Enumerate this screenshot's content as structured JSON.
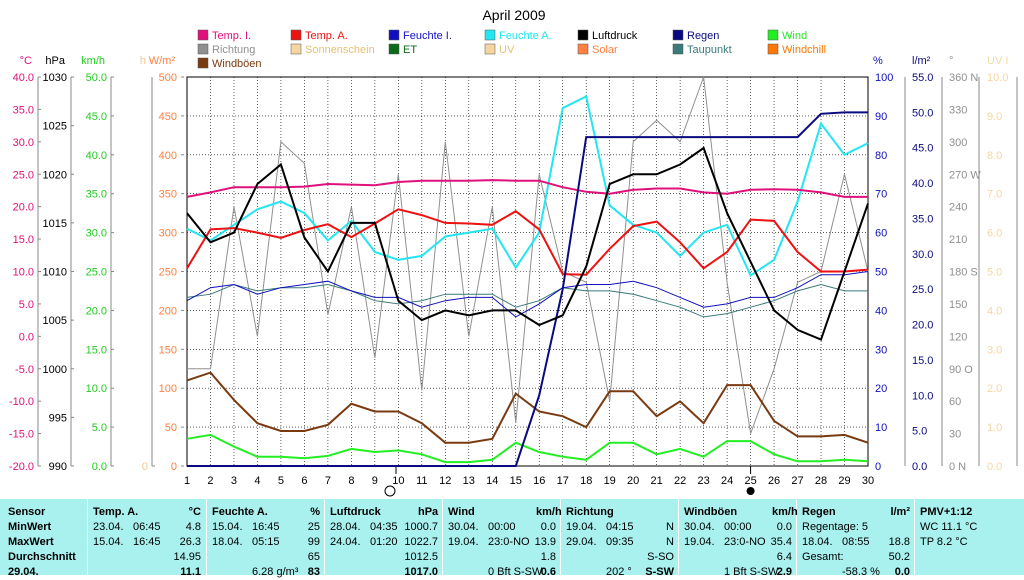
{
  "chart_data": {
    "type": "line",
    "title": "April 2009",
    "x": [
      1,
      2,
      3,
      4,
      5,
      6,
      7,
      8,
      9,
      10,
      11,
      12,
      13,
      14,
      15,
      16,
      17,
      18,
      19,
      20,
      21,
      22,
      23,
      24,
      25,
      26,
      27,
      28,
      29,
      30
    ],
    "x_ticks": [
      "1",
      "2",
      "3",
      "4",
      "5",
      "6",
      "7",
      "8",
      "9",
      "10",
      "11",
      "12",
      "13",
      "14",
      "15",
      "16",
      "17",
      "18",
      "19",
      "20",
      "21",
      "22",
      "23",
      "24",
      "25",
      "26",
      "27",
      "28",
      "29",
      "30"
    ],
    "legend": [
      {
        "name": "Temp. I.",
        "color": "#e0107c"
      },
      {
        "name": "Temp. A.",
        "color": "#ee1111"
      },
      {
        "name": "Feuchte I.",
        "color": "#1010c0"
      },
      {
        "name": "Feuchte A.",
        "color": "#22e6f0"
      },
      {
        "name": "Luftdruck",
        "color": "#000000"
      },
      {
        "name": "Regen",
        "color": "#0a0a80"
      },
      {
        "name": "Wind",
        "color": "#22ee22"
      },
      {
        "name": "Richtung",
        "color": "#909090"
      },
      {
        "name": "Sonnenschein",
        "color": "#f5d6a0"
      },
      {
        "name": "ET",
        "color": "#0a6a1a"
      },
      {
        "name": "UV",
        "color": "#f5d6a0"
      },
      {
        "name": "Solar",
        "color": "#ff8040"
      },
      {
        "name": "Taupunkt",
        "color": "#3a7a7a"
      },
      {
        "name": "Windchill",
        "color": "#ff7700"
      },
      {
        "name": "Windböen",
        "color": "#7a3a10"
      }
    ],
    "axes_left": [
      {
        "unit": "°C",
        "color": "#e0107c",
        "ticks": [
          "40.0",
          "35.0",
          "30.0",
          "25.0",
          "20.0",
          "15.0",
          "10.0",
          "5.0",
          "0.0",
          "-5.0",
          "-10.0",
          "-15.0",
          "-20.0"
        ]
      },
      {
        "unit": "hPa",
        "color": "#000000",
        "ticks": [
          "1030",
          "1025",
          "1020",
          "1015",
          "1010",
          "1005",
          "1000",
          "995",
          "990"
        ]
      },
      {
        "unit": "km/h",
        "color": "#22cc22",
        "ticks": [
          "50.0",
          "45.0",
          "40.0",
          "35.0",
          "30.0",
          "25.0",
          "20.0",
          "15.0",
          "10.0",
          "5.0",
          "0.0"
        ]
      },
      {
        "unit": "h",
        "color": "#f5c890",
        "ticks": [
          "0"
        ]
      },
      {
        "unit": "W/m²",
        "color": "#ff8040",
        "ticks": [
          "500",
          "450",
          "400",
          "350",
          "300",
          "250",
          "200",
          "150",
          "100",
          "50",
          "0"
        ]
      }
    ],
    "axes_right": [
      {
        "unit": "%",
        "color": "#1010c0",
        "ticks": [
          "100",
          "90",
          "80",
          "70",
          "60",
          "50",
          "40",
          "30",
          "20",
          "10",
          "0"
        ]
      },
      {
        "unit": "l/m²",
        "color": "#0a0a80",
        "ticks": [
          "55.0",
          "50.0",
          "45.0",
          "40.0",
          "35.0",
          "30.0",
          "25.0",
          "20.0",
          "15.0",
          "10.0",
          "5.0",
          "0.0"
        ]
      },
      {
        "unit": "°",
        "color": "#909090",
        "ticks": [
          "360 N",
          "330",
          "300",
          "270 W",
          "240",
          "210",
          "180 S",
          "150",
          "120",
          "90 O",
          "60",
          "30",
          "0 N"
        ]
      },
      {
        "unit": "UV I",
        "color": "#f5d6a0",
        "ticks": [
          "10.0",
          "9.0",
          "8.0",
          "7.0",
          "6.0",
          "5.0",
          "4.0",
          "3.0",
          "2.0",
          "1.0",
          "0.0"
        ]
      }
    ],
    "series": [
      {
        "name": "Temp. I.",
        "axis": "temp",
        "color": "#e0107c",
        "values": [
          21.5,
          22.2,
          23.0,
          23.0,
          23.0,
          23.1,
          23.5,
          23.4,
          23.3,
          23.8,
          24.0,
          24.0,
          24.0,
          24.1,
          24.0,
          24.0,
          23.0,
          22.3,
          22.0,
          22.6,
          22.8,
          22.8,
          22.2,
          22.0,
          22.6,
          22.7,
          22.6,
          22.2,
          21.5,
          21.5
        ]
      },
      {
        "name": "Temp. A.",
        "axis": "temp",
        "color": "#ee1111",
        "values": [
          10.5,
          16.5,
          16.7,
          16.0,
          15.2,
          16.4,
          17.3,
          15.3,
          17.4,
          19.6,
          18.7,
          17.5,
          17.4,
          17.2,
          19.3,
          16.5,
          9.6,
          9.5,
          13.5,
          17.0,
          17.7,
          14.5,
          10.5,
          13.0,
          18.0,
          17.8,
          13.0,
          10.0,
          10.0,
          10.3
        ]
      },
      {
        "name": "Feuchte A.",
        "axis": "pct",
        "color": "#22e6f0",
        "values": [
          61,
          58,
          62,
          66,
          68,
          65,
          58,
          63,
          55,
          53,
          54,
          59,
          60,
          61,
          51,
          60,
          92,
          95,
          67,
          62,
          60,
          54,
          60,
          62,
          49,
          53,
          68,
          88,
          80,
          83
        ]
      },
      {
        "name": "Luftdruck",
        "axis": "hpa",
        "color": "#000000",
        "values": [
          1016.0,
          1013.0,
          1014.0,
          1019.0,
          1021.0,
          1013.5,
          1010.0,
          1015.0,
          1015.0,
          1007.0,
          1005.0,
          1006.0,
          1005.5,
          1006.0,
          1006.0,
          1004.5,
          1005.5,
          1010.5,
          1019.0,
          1020.0,
          1020.0,
          1021.0,
          1022.7,
          1016.0,
          1011.0,
          1006.0,
          1004.0,
          1003.0,
          1010.0,
          1017.0
        ]
      },
      {
        "name": "Regen",
        "axis": "rain",
        "color": "#0a0a80",
        "values": [
          0,
          0,
          0,
          0,
          0,
          0,
          0,
          0,
          0,
          0,
          0,
          0,
          0,
          0,
          0,
          10.0,
          25.0,
          46.5,
          46.5,
          46.5,
          46.5,
          46.5,
          46.5,
          46.5,
          46.5,
          46.5,
          46.5,
          49.8,
          50.0,
          50.0
        ]
      },
      {
        "name": "Wind",
        "axis": "kmh",
        "color": "#22ee22",
        "values": [
          3.5,
          4.0,
          2.5,
          1.2,
          1.2,
          1.0,
          1.3,
          2.2,
          1.8,
          2.0,
          1.5,
          0.5,
          0.5,
          0.8,
          3.0,
          1.8,
          1.2,
          0.8,
          3.0,
          3.0,
          1.5,
          2.2,
          1.2,
          3.2,
          3.2,
          1.5,
          0.6,
          0.6,
          0.8,
          0.6
        ]
      },
      {
        "name": "Windböen",
        "axis": "kmh",
        "color": "#7a3a10",
        "values": [
          11.0,
          12.0,
          8.5,
          5.5,
          4.5,
          4.5,
          5.3,
          8.0,
          7.0,
          7.0,
          5.5,
          3.0,
          3.0,
          3.5,
          9.3,
          7.0,
          6.4,
          5.0,
          9.6,
          9.6,
          6.4,
          8.3,
          5.5,
          10.4,
          10.4,
          5.8,
          3.8,
          3.8,
          4.0,
          3.0
        ]
      },
      {
        "name": "Richtung",
        "axis": "deg",
        "color": "#909090",
        "values": [
          90,
          90,
          240,
          120,
          300,
          280,
          140,
          240,
          100,
          270,
          70,
          300,
          120,
          240,
          40,
          270,
          180,
          170,
          60,
          300,
          320,
          300,
          360,
          170,
          30,
          90,
          170,
          180,
          270,
          180
        ]
      },
      {
        "name": "Taupunkt",
        "axis": "temp",
        "color": "#3a7a7a",
        "values": [
          6.0,
          6.5,
          8.0,
          7.0,
          7.5,
          7.5,
          8.0,
          7.0,
          5.5,
          5.0,
          5.5,
          6.5,
          6.5,
          6.5,
          4.5,
          5.5,
          7.5,
          7.0,
          7.0,
          6.5,
          5.5,
          4.5,
          3.0,
          3.5,
          4.5,
          5.5,
          7.0,
          8.0,
          7.0,
          7.0
        ]
      },
      {
        "name": "Feuchte I.",
        "axis": "temp",
        "color": "#1010c0",
        "values": [
          5.5,
          7.5,
          8.0,
          6.5,
          7.5,
          8.0,
          8.5,
          7.0,
          6.0,
          6.0,
          4.5,
          5.5,
          6.0,
          6.0,
          3.0,
          5.0,
          7.5,
          8.0,
          8.0,
          8.5,
          7.5,
          6.0,
          4.5,
          5.0,
          6.0,
          6.0,
          7.5,
          9.5,
          9.5,
          10.0
        ]
      }
    ],
    "markers": {
      "full_moon_day": 9.9,
      "new_moon_day": 25
    }
  },
  "table": {
    "columns": [
      {
        "header": {
          "title": "Sensor",
          "unit": ""
        },
        "rows": [
          {
            "label": "MinWert"
          },
          {
            "label": "MaxWert"
          },
          {
            "label": "Durchschnitt"
          },
          {
            "label": "29.04."
          }
        ]
      },
      {
        "header": {
          "title": "Temp. A.",
          "unit": "°C"
        },
        "rows": [
          {
            "label": "23.04.",
            "time": "06:45",
            "value": "4.8"
          },
          {
            "label": "15.04.",
            "time": "16:45",
            "value": "26.3"
          },
          {
            "label": "",
            "time": "",
            "value": "14.95"
          },
          {
            "label": "",
            "time": "",
            "value": "11.1"
          }
        ]
      },
      {
        "header": {
          "title": "Feuchte A.",
          "unit": "%"
        },
        "rows": [
          {
            "label": "15.04.",
            "time": "16:45",
            "value": "25"
          },
          {
            "label": "18.04.",
            "time": "05:15",
            "value": "99"
          },
          {
            "label": "",
            "time": "",
            "value": "65"
          },
          {
            "label": "",
            "time": "6.28 g/m³",
            "value": "83"
          }
        ]
      },
      {
        "header": {
          "title": "Luftdruck",
          "unit": "hPa"
        },
        "rows": [
          {
            "label": "28.04.",
            "time": "04:35",
            "value": "1000.7"
          },
          {
            "label": "24.04.",
            "time": "01:20",
            "value": "1022.7"
          },
          {
            "label": "",
            "time": "",
            "value": "1012.5"
          },
          {
            "label": "",
            "time": "",
            "value": "1017.0"
          }
        ]
      },
      {
        "header": {
          "title": "Wind",
          "unit": "km/h"
        },
        "rows": [
          {
            "label": "30.04.",
            "time": "00:00",
            "value": "0.0"
          },
          {
            "label": "19.04.",
            "time": "23:0-NO",
            "value": "13.9"
          },
          {
            "label": "",
            "time": "",
            "value": "1.8"
          },
          {
            "label": "",
            "time": "0 Bft S-SW",
            "value": "0.6"
          }
        ]
      },
      {
        "header": {
          "title": "Richtung",
          "unit": ""
        },
        "rows": [
          {
            "label": "19.04.",
            "time": "04:15",
            "value": "N"
          },
          {
            "label": "29.04.",
            "time": "09:35",
            "value": "N"
          },
          {
            "label": "",
            "time": "",
            "value": "S-SO"
          },
          {
            "label": "",
            "time": "202 °",
            "value": "S-SW"
          }
        ]
      },
      {
        "header": {
          "title": "Windböen",
          "unit": "km/h"
        },
        "rows": [
          {
            "label": "30.04.",
            "time": "00:00",
            "value": "0.0"
          },
          {
            "label": "19.04.",
            "time": "23:0-NO",
            "value": "35.4"
          },
          {
            "label": "",
            "time": "",
            "value": "6.4"
          },
          {
            "label": "",
            "time": "1 Bft S-SW",
            "value": "2.9"
          }
        ]
      },
      {
        "header": {
          "title": "Regen",
          "unit": "l/m²"
        },
        "rows": [
          {
            "label": "Regentage: 5",
            "time": "",
            "value": ""
          },
          {
            "label": "18.04.",
            "time": "08:55",
            "value": "18.8"
          },
          {
            "label": "Gesamt:",
            "time": "",
            "value": "50.2"
          },
          {
            "label": "",
            "time": "-58.3 %",
            "value": "0.0"
          }
        ]
      },
      {
        "header": {
          "title": "PMV+1:12",
          "unit": ""
        },
        "rows": [
          {
            "label": "WC 11.1 °C"
          },
          {
            "label": "TP 8.2 °C"
          },
          {
            "label": ""
          },
          {
            "label": ""
          }
        ]
      }
    ]
  }
}
